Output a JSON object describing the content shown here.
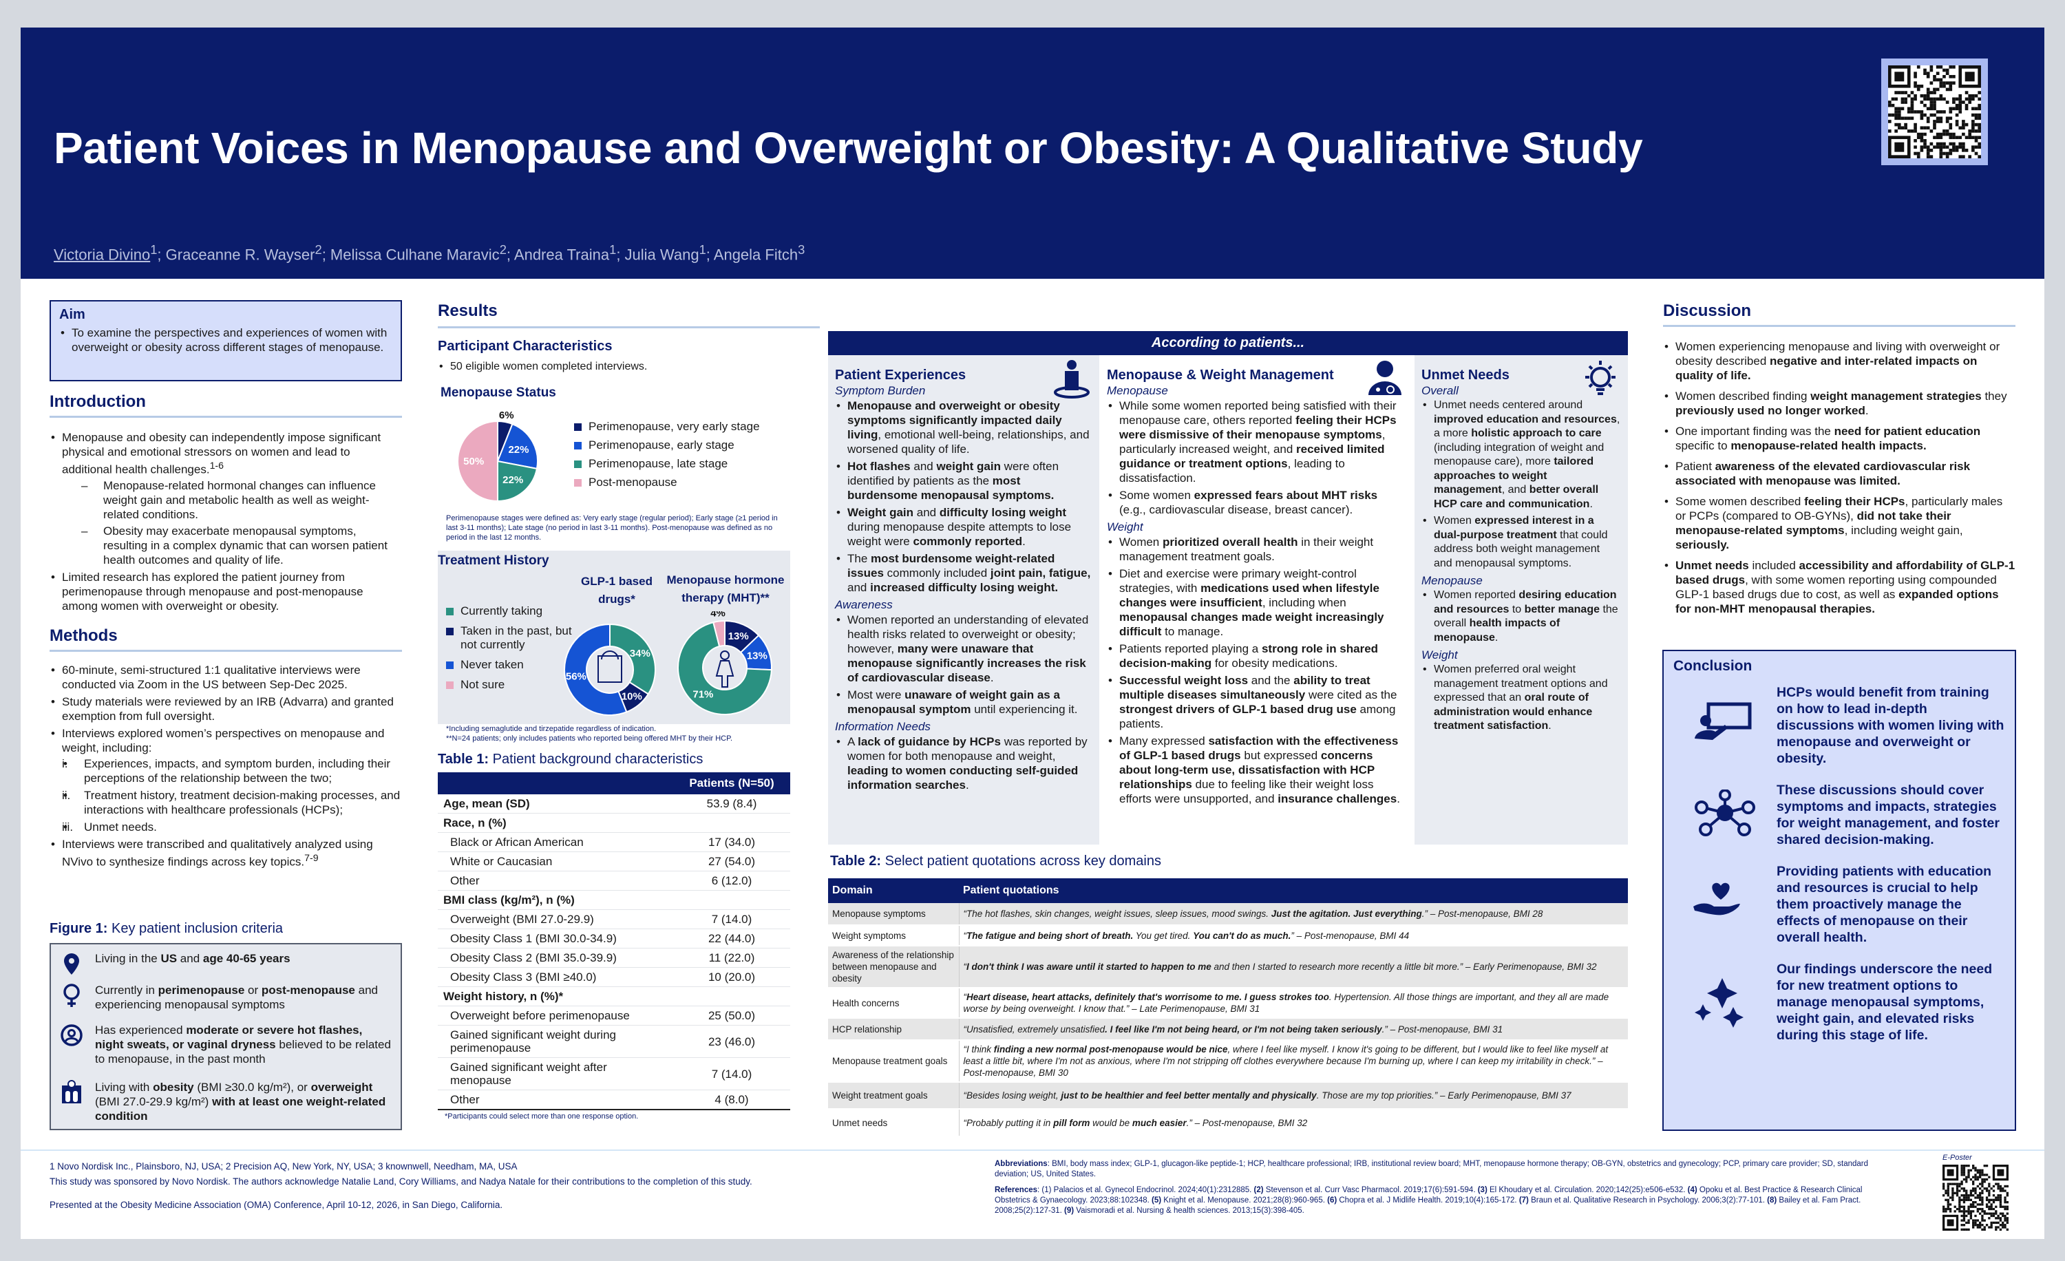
{
  "header": {
    "title": "Patient Voices in Menopause and Overweight or Obesity: A Qualitative Study",
    "authors": [
      {
        "name": "Victoria Divino",
        "sup": "1",
        "presenting": true
      },
      {
        "name": "Graceanne R. Wayser",
        "sup": "2"
      },
      {
        "name": "Melissa Culhane Maravic",
        "sup": "2"
      },
      {
        "name": "Andrea Traina",
        "sup": "1"
      },
      {
        "name": "Julia Wang",
        "sup": "1"
      },
      {
        "name": "Angela Fitch",
        "sup": "3"
      }
    ]
  },
  "colors": {
    "navy": "#0b1c6b",
    "very_early": "#0b1c6b",
    "early": "#1554d4",
    "late": "#2a9181",
    "post": "#eba9bf",
    "light_blue": "#d6defb"
  },
  "aim": {
    "title": "Aim",
    "text": "To examine the perspectives and experiences of women with overweight or obesity across different stages of menopause."
  },
  "intro": {
    "title": "Introduction",
    "b1": "Menopause and obesity can independently impose significant physical and emotional stressors on women and lead to additional health challenges.",
    "b1_sup": "1-6",
    "d1": "Menopause-related hormonal changes can influence weight gain and metabolic health as well as weight-related conditions.",
    "d2": "Obesity may exacerbate menopausal symptoms, resulting in a complex dynamic that can worsen patient health outcomes and quality of life.",
    "b2": "Limited research has explored the patient journey from perimenopause through menopause and post-menopause among women with overweight or obesity."
  },
  "methods": {
    "title": "Methods",
    "b1": "60-minute, semi-structured 1:1 qualitative interviews were conducted via Zoom in the US between Sep-Dec 2025.",
    "b2": "Study materials were reviewed by an IRB (Advarra) and granted exemption from full oversight.",
    "b3": "Interviews explored women’s perspectives on menopause and weight, including:",
    "sub": [
      {
        "n": "i.",
        "t": "Experiences, impacts, and symptom burden, including their perceptions of the relationship between the two;"
      },
      {
        "n": "ii.",
        "t": "Treatment history, treatment decision-making processes, and interactions with healthcare professionals (HCPs);"
      },
      {
        "n": "iii.",
        "t": "Unmet needs."
      }
    ],
    "b4": "Interviews were transcribed and qualitatively analyzed using NVivo to synthesize findings across key topics.",
    "b4_sup": "7-9"
  },
  "figure1": {
    "label": "Figure 1:",
    "title": " Key patient inclusion criteria",
    "items": [
      {
        "icon": "location-pin-icon",
        "text": "Living in the **US** and **age 40-65 years**"
      },
      {
        "icon": "female-symbol-icon",
        "text": "Currently in **perimenopause** or **post-menopause** and experiencing menopausal symptoms"
      },
      {
        "icon": "person-circle-icon",
        "text": "Has experienced **moderate or severe hot flashes, night sweats, or vaginal dryness** believed to be related to menopause, in the past month"
      },
      {
        "icon": "weight-scale-icon",
        "text": "Living with **obesity** (BMI ≥30.0 kg/m²), or **overweight** (BMI 27.0-29.9 kg/m²) **with at least one weight-related condition**"
      }
    ]
  },
  "results": {
    "title": "Results",
    "pc_title": "Participant Characteristics",
    "pc_bullet": "50 eligible women completed interviews.",
    "status_title": "Menopause Status",
    "status_note": "Perimenopause stages were defined as: Very early stage (regular period); Early stage (≥1 period in last 3-11 months); Late stage (no period in last 3-11 months). Post-menopause was defined as no period in the last 12 months.",
    "th_title": "Treatment History",
    "th_legend": [
      "Currently taking",
      "Taken in the past, but not currently",
      "Never taken",
      "Not sure"
    ],
    "glp_title": "GLP-1 based drugs*",
    "mht_title": "Menopause hormone therapy (MHT)**",
    "th_note1": "*Including semaglutide and tirzepatide regardless of indication.",
    "th_note2": "**N=24 patients; only includes patients who reported being offered MHT by their HCP."
  },
  "chart_data": [
    {
      "type": "pie",
      "title": "Menopause Status",
      "categories": [
        "Perimenopause, very early stage",
        "Perimenopause, early stage",
        "Perimenopause, late stage",
        "Post-menopause"
      ],
      "values": [
        6,
        22,
        22,
        50
      ],
      "labels": [
        "6%",
        "22%",
        "22%",
        "50%"
      ],
      "colors": [
        "#0b1c6b",
        "#1554d4",
        "#2a9181",
        "#eba9bf"
      ],
      "legend": "right"
    },
    {
      "type": "pie",
      "donut": true,
      "title": "GLP-1 based drugs*",
      "categories": [
        "Currently taking",
        "Taken in the past, but not currently",
        "Never taken"
      ],
      "values": [
        34,
        10,
        56
      ],
      "labels": [
        "34%",
        "10%",
        "56%"
      ],
      "colors": [
        "#2a9181",
        "#0b1c6b",
        "#1554d4"
      ],
      "legend": "left"
    },
    {
      "type": "pie",
      "donut": true,
      "title": "Menopause hormone therapy (MHT)**",
      "categories": [
        "Taken in the past, but not currently",
        "Never taken",
        "Currently taking",
        "Not sure"
      ],
      "values": [
        13,
        13,
        71,
        4
      ],
      "labels": [
        "13%",
        "13%",
        "71%",
        "4%"
      ],
      "colors": [
        "#0b1c6b",
        "#1554d4",
        "#2a9181",
        "#eba9bf"
      ],
      "legend": "left"
    }
  ],
  "table1": {
    "label": "Table 1:",
    "title": " Patient background characteristics",
    "col": "Patients (N=50)",
    "rows": [
      {
        "l": "Age, mean (SD)",
        "v": "53.9 (8.4)",
        "h": true
      },
      {
        "l": "Race, n (%)",
        "v": "",
        "h": true
      },
      {
        "l": "Black or African American",
        "v": "17 (34.0)"
      },
      {
        "l": "White or Caucasian",
        "v": "27 (54.0)"
      },
      {
        "l": "Other",
        "v": "6 (12.0)"
      },
      {
        "l": "BMI class (kg/m²), n (%)",
        "v": "",
        "h": true
      },
      {
        "l": "Overweight (BMI 27.0-29.9)",
        "v": "7 (14.0)"
      },
      {
        "l": "Obesity Class 1 (BMI 30.0-34.9)",
        "v": "22 (44.0)"
      },
      {
        "l": "Obesity Class 2 (BMI 35.0-39.9)",
        "v": "11 (22.0)"
      },
      {
        "l": "Obesity Class 3 (BMI ≥40.0)",
        "v": "10 (20.0)"
      },
      {
        "l": "Weight history, n (%)*",
        "v": "",
        "h": true
      },
      {
        "l": "Overweight before perimenopause",
        "v": "25 (50.0)"
      },
      {
        "l": "Gained significant weight during perimenopause",
        "v": "23 (46.0)"
      },
      {
        "l": "Gained significant weight after menopause",
        "v": "7 (14.0)"
      },
      {
        "l": "Other",
        "v": "4 (8.0)"
      }
    ],
    "note": "*Participants could select more than one response option."
  },
  "according": {
    "banner": "According to patients...",
    "patient_exp": {
      "title": "Patient Experiences",
      "sections": [
        {
          "sub": "Symptom Burden",
          "items": [
            "**Menopause and overweight or obesity symptoms significantly impacted daily living**, emotional well-being, relationships, and worsened quality of life.",
            "**Hot flashes** and **weight gain** were often identified by patients as the **most burdensome menopausal symptoms.**",
            "**Weight gain** and **difficulty losing weight** during menopause despite attempts to lose weight were **commonly reported**.",
            "The **most burdensome weight-related issues** commonly included **joint pain, fatigue,** and **increased difficulty losing weight.**"
          ]
        },
        {
          "sub": "Awareness",
          "items": [
            "Women reported an understanding of elevated health risks related to overweight or obesity; however, **many were unaware that menopause significantly increases the risk of cardiovascular disease**.",
            "Most were **unaware of weight gain as a menopausal symptom** until experiencing it."
          ]
        },
        {
          "sub": "Information Needs",
          "items": [
            "A **lack of guidance by HCPs** was reported by women for both menopause and weight, **leading to women conducting self-guided information searches**."
          ]
        }
      ]
    },
    "mgmt": {
      "title": "Menopause & Weight Management",
      "sections": [
        {
          "sub": "Menopause",
          "items": [
            "While some women reported being satisfied with their menopause care, others reported **feeling their HCPs were dismissive of their menopause symptoms**, particularly increased weight, and **received limited guidance or treatment options**, leading to dissatisfaction.",
            "Some women **expressed fears about MHT risks** (e.g., cardiovascular disease, breast cancer)."
          ]
        },
        {
          "sub": "Weight",
          "items": [
            "Women **prioritized overall health** in their weight management treatment goals.",
            "Diet and exercise were primary weight-control strategies, with **medications used when lifestyle changes were insufficient**, including when **menopausal changes made weight increasingly difficult** to manage.",
            "Patients reported playing a **strong role in shared decision-making** for obesity medications.",
            "**Successful weight loss** and the **ability to treat multiple diseases simultaneously** were cited as the **strongest drivers of GLP-1 based drug use** among patients.",
            "Many expressed **satisfaction with the effectiveness of GLP-1 based drugs** but expressed **concerns about long-term use, dissatisfaction with HCP relationships** due to feeling like their weight loss efforts were unsupported, and **insurance challenges**."
          ]
        }
      ]
    },
    "unmet": {
      "title": "Unmet Needs",
      "sections": [
        {
          "sub": "Overall",
          "items": [
            "Unmet needs centered around **improved education and resources**, a more **holistic approach to care** (including integration of weight and menopause care), more **tailored approaches to weight management**, and **better overall HCP care and communication**.",
            "Women **expressed interest in a dual-purpose treatment** that could address both weight management and menopausal symptoms."
          ]
        },
        {
          "sub": "Menopause",
          "items": [
            "Women reported **desiring education and resources** to **better manage** the overall **health impacts of menopause**."
          ]
        },
        {
          "sub": "Weight",
          "items": [
            "Women preferred oral weight management treatment options and expressed that an **oral route of administration would enhance treatment satisfaction**."
          ]
        }
      ]
    }
  },
  "table2": {
    "label": "Table 2:",
    "title": " Select patient quotations across key domains",
    "cols": [
      "Domain",
      "Patient quotations"
    ],
    "rows": [
      {
        "d": "Menopause symptoms",
        "q": "“The hot flashes, skin changes, weight issues, sleep issues, mood swings. **Just the agitation. Just everything**.” – Post-menopause, BMI 28"
      },
      {
        "d": "Weight symptoms",
        "q": "“**The fatigue and being short of breath.** You get tired. **You can't do as much.**” – Post-menopause, BMI 44"
      },
      {
        "d": "Awareness of the relationship between menopause and obesity",
        "q": "“**I don't think I was aware until it started to happen to me** and then I started to research more recently a little bit more.” – Early Perimenopause, BMI 32"
      },
      {
        "d": "Health concerns",
        "q": "“**Heart disease, heart attacks, definitely that's worrisome to me. I guess strokes too**. Hypertension. All those things are important, and they all are made worse by being overweight. I know that.” – Late Perimenopause, BMI 31"
      },
      {
        "d": "HCP relationship",
        "q": "“Unsatisfied, extremely unsatisfied**. I feel like I'm not being heard, or I'm not being taken seriously**.” – Post-menopause, BMI 31"
      },
      {
        "d": "Menopause treatment goals",
        "q": "“I think **finding a new normal post-menopause would be nice**, where I feel like myself. I know it's going to be different, but I would like to feel like myself at least a little bit, where I'm not as anxious, where I'm not stripping off clothes everywhere because I'm burning up, where I can keep my irritability in check.” – Post-menopause, BMI 30"
      },
      {
        "d": "Weight treatment goals",
        "q": "“Besides losing weight, **just to be healthier and feel better mentally and physically**. Those are my top priorities.” – Early Perimenopause, BMI 37"
      },
      {
        "d": "Unmet needs",
        "q": "“Probably putting it in **pill form** would be **much easier**.” – Post-menopause, BMI 32"
      }
    ]
  },
  "discussion": {
    "title": "Discussion",
    "items": [
      "Women experiencing menopause and living with overweight or obesity described **negative and inter-related impacts on quality of life.**",
      "Women described finding **weight management strategies** they **previously used no longer worked**.",
      "One important finding was the **need for patient education** specific to **menopause-related health impacts.**",
      "Patient **awareness of the elevated cardiovascular risk associated with menopause was limited.**",
      "Some women described **feeling their HCPs**, particularly males or PCPs (compared to OB-GYNs), **did not take their menopause-related symptoms**, including weight gain, **seriously.**",
      "**Unmet needs** included **accessibility and affordability of GLP-1 based drugs**, with some women reporting using compounded GLP-1 based drugs due to cost, as well as **expanded options for non-MHT menopausal therapies.**"
    ]
  },
  "conclusion": {
    "title": "Conclusion",
    "items": [
      {
        "icon": "teacher-board-icon",
        "text": "HCPs would benefit from training on how to lead in-depth discussions with women living with menopause and overweight or obesity."
      },
      {
        "icon": "network-people-icon",
        "text": "These discussions should cover symptoms and impacts, strategies for weight management, and foster shared decision-making."
      },
      {
        "icon": "heart-hand-icon",
        "text": "Providing patients with education and resources is crucial to help them proactively manage the effects of menopause on their overall health."
      },
      {
        "icon": "sparkles-icon",
        "text": "Our findings underscore the need for new treatment options to manage menopausal symptoms, weight gain, and elevated risks during this stage of life."
      }
    ]
  },
  "footer": {
    "affiliations": "1 Novo Nordisk Inc., Plainsboro, NJ, USA; 2 Precision AQ, New York, NY, USA; 3 knownwell, Needham, MA, USA",
    "sponsor": "This study was sponsored by Novo Nordisk. The authors acknowledge Natalie Land, Cory Williams, and Nadya Natale for their contributions to the completion of this study.",
    "presented": "Presented at the Obesity Medicine Association (OMA) Conference, April 10-12, 2026, in San Diego, California.",
    "abbreviations": "**Abbreviations**: BMI, body mass index; GLP-1, glucagon-like peptide-1; HCP, healthcare professional; IRB, institutional review board; MHT, menopause hormone therapy; OB-GYN, obstetrics and gynecology; PCP, primary care provider; SD, standard deviation; US, United States.",
    "references": "**References**: (1) Palacios et al. Gynecol Endocrinol. 2024;40(1):2312885. **(2)** Stevenson et al. Curr Vasc Pharmacol. 2019;17(6):591-594. **(3)** El Khoudary et al. Circulation. 2020;142(25):e506-e532. **(4)** Opoku et al. Best Practice & Research Clinical Obstetrics & Gynaecology. 2023;88:102348. **(5)** Knight et al. Menopause. 2021;28(8):960-965. **(6)** Chopra et al. J Midlife Health. 2019;10(4):165-172. **(7)** Braun et al. Qualitative Research in Psychology. 2006;3(2):77-101. **(8)** Bailey et al. Fam Pract. 2008;25(2):127-31. **(9)** Vaismoradi et al. Nursing & health sciences. 2013;15(3):398-405.",
    "eposter": "E-Poster"
  }
}
